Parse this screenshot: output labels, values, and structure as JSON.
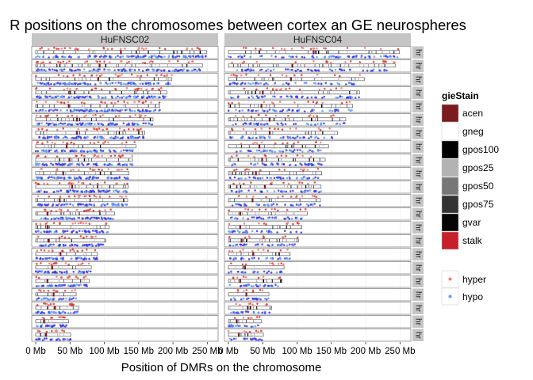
{
  "chart_data": {
    "type": "scatter",
    "title": "R positions on the chromosomes between cortex an GE neurospheres",
    "xlabel": "Position of DMRs on the chromosome",
    "ylabel": "",
    "xlim": [
      0,
      260
    ],
    "x_unit": "Mb",
    "x_ticks": [
      {
        "value": 0,
        "label": "0 Mb"
      },
      {
        "value": 50,
        "label": "50 Mb"
      },
      {
        "value": 100,
        "label": "100 Mb"
      },
      {
        "value": 150,
        "label": "150 Mb"
      },
      {
        "value": 200,
        "label": "200 Mb"
      },
      {
        "value": 250,
        "label": "250 Mb"
      }
    ],
    "grid": true,
    "legend_position": "right",
    "facets": [
      "HuFNSC02",
      "HuFNSC04"
    ],
    "row_strip_label": "hr",
    "chromosome_lengths_mb": [
      249,
      243,
      198,
      191,
      181,
      171,
      159,
      146,
      141,
      136,
      135,
      134,
      115,
      107,
      102,
      90,
      81,
      78,
      59,
      63,
      48,
      51
    ],
    "centromeres_mb": [
      124,
      93,
      91,
      50,
      48,
      60,
      60,
      45,
      49,
      40,
      53,
      35,
      17,
      17,
      19,
      36,
      24,
      17,
      26,
      28,
      12,
      15
    ],
    "series": [
      {
        "name": "hyper",
        "color": "#F8766D"
      },
      {
        "name": "hypo",
        "color": "#619CFF"
      }
    ],
    "legend_giestain": {
      "title": "gieStain",
      "items": [
        {
          "label": "acen",
          "color": "#7b1a1f"
        },
        {
          "label": "gneg",
          "color": "#ffffff"
        },
        {
          "label": "gpos100",
          "color": "#000000"
        },
        {
          "label": "gpos25",
          "color": "#b3b3b3"
        },
        {
          "label": "gpos50",
          "color": "#777777"
        },
        {
          "label": "gpos75",
          "color": "#333333"
        },
        {
          "label": "gvar",
          "color": "#050505"
        },
        {
          "label": "stalk",
          "color": "#c7202a"
        }
      ]
    },
    "legend_points": {
      "items": [
        {
          "label": "hyper",
          "color": "#F8766D"
        },
        {
          "label": "hypo",
          "color": "#619CFF"
        }
      ]
    },
    "colors": {
      "strip": "#c5c5c5",
      "strip_text": "#1a1a1a",
      "hyper_dense": "#e8342e",
      "hypo_dense": "#3b3bf0",
      "grid": "#ebebeb"
    }
  }
}
